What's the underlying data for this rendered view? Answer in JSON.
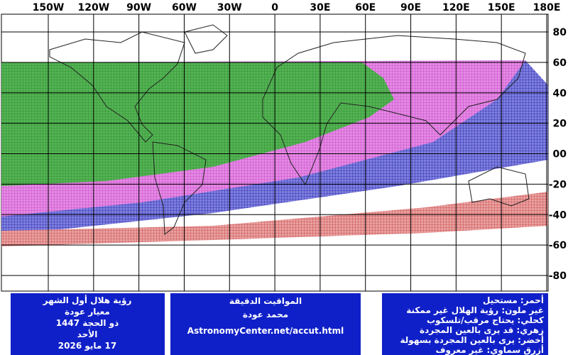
{
  "map": {
    "lon_labels": [
      "150W",
      "120W",
      "90W",
      "60W",
      "30W",
      "0",
      "30E",
      "60E",
      "90E",
      "120E",
      "150E",
      "180E"
    ],
    "lat_labels": [
      "80",
      "60",
      "40",
      "20",
      "00",
      "-20",
      "-40",
      "-60",
      "-80"
    ]
  },
  "panels": {
    "left": [
      "رؤية هلال أول الشهر",
      "معيار عودة",
      "ذو الحجة 1447",
      "الأحد",
      "17 مايو 2026"
    ],
    "middle": [
      "المواقيت الدقيقة",
      "محمد عودة",
      "AstronomyCenter.net/accut.html"
    ],
    "right": [
      "أحمر: مستحيل",
      "غير ملون: رؤية الهلال غير ممكنة",
      "كحلي: يحتاج مرقب/تلسكوب",
      "زهري: قد يرى بالعين المجردة",
      "أخضر: يرى بالعين المجردة بسهولة",
      "أزرق سماوي: غير معروف"
    ]
  }
}
